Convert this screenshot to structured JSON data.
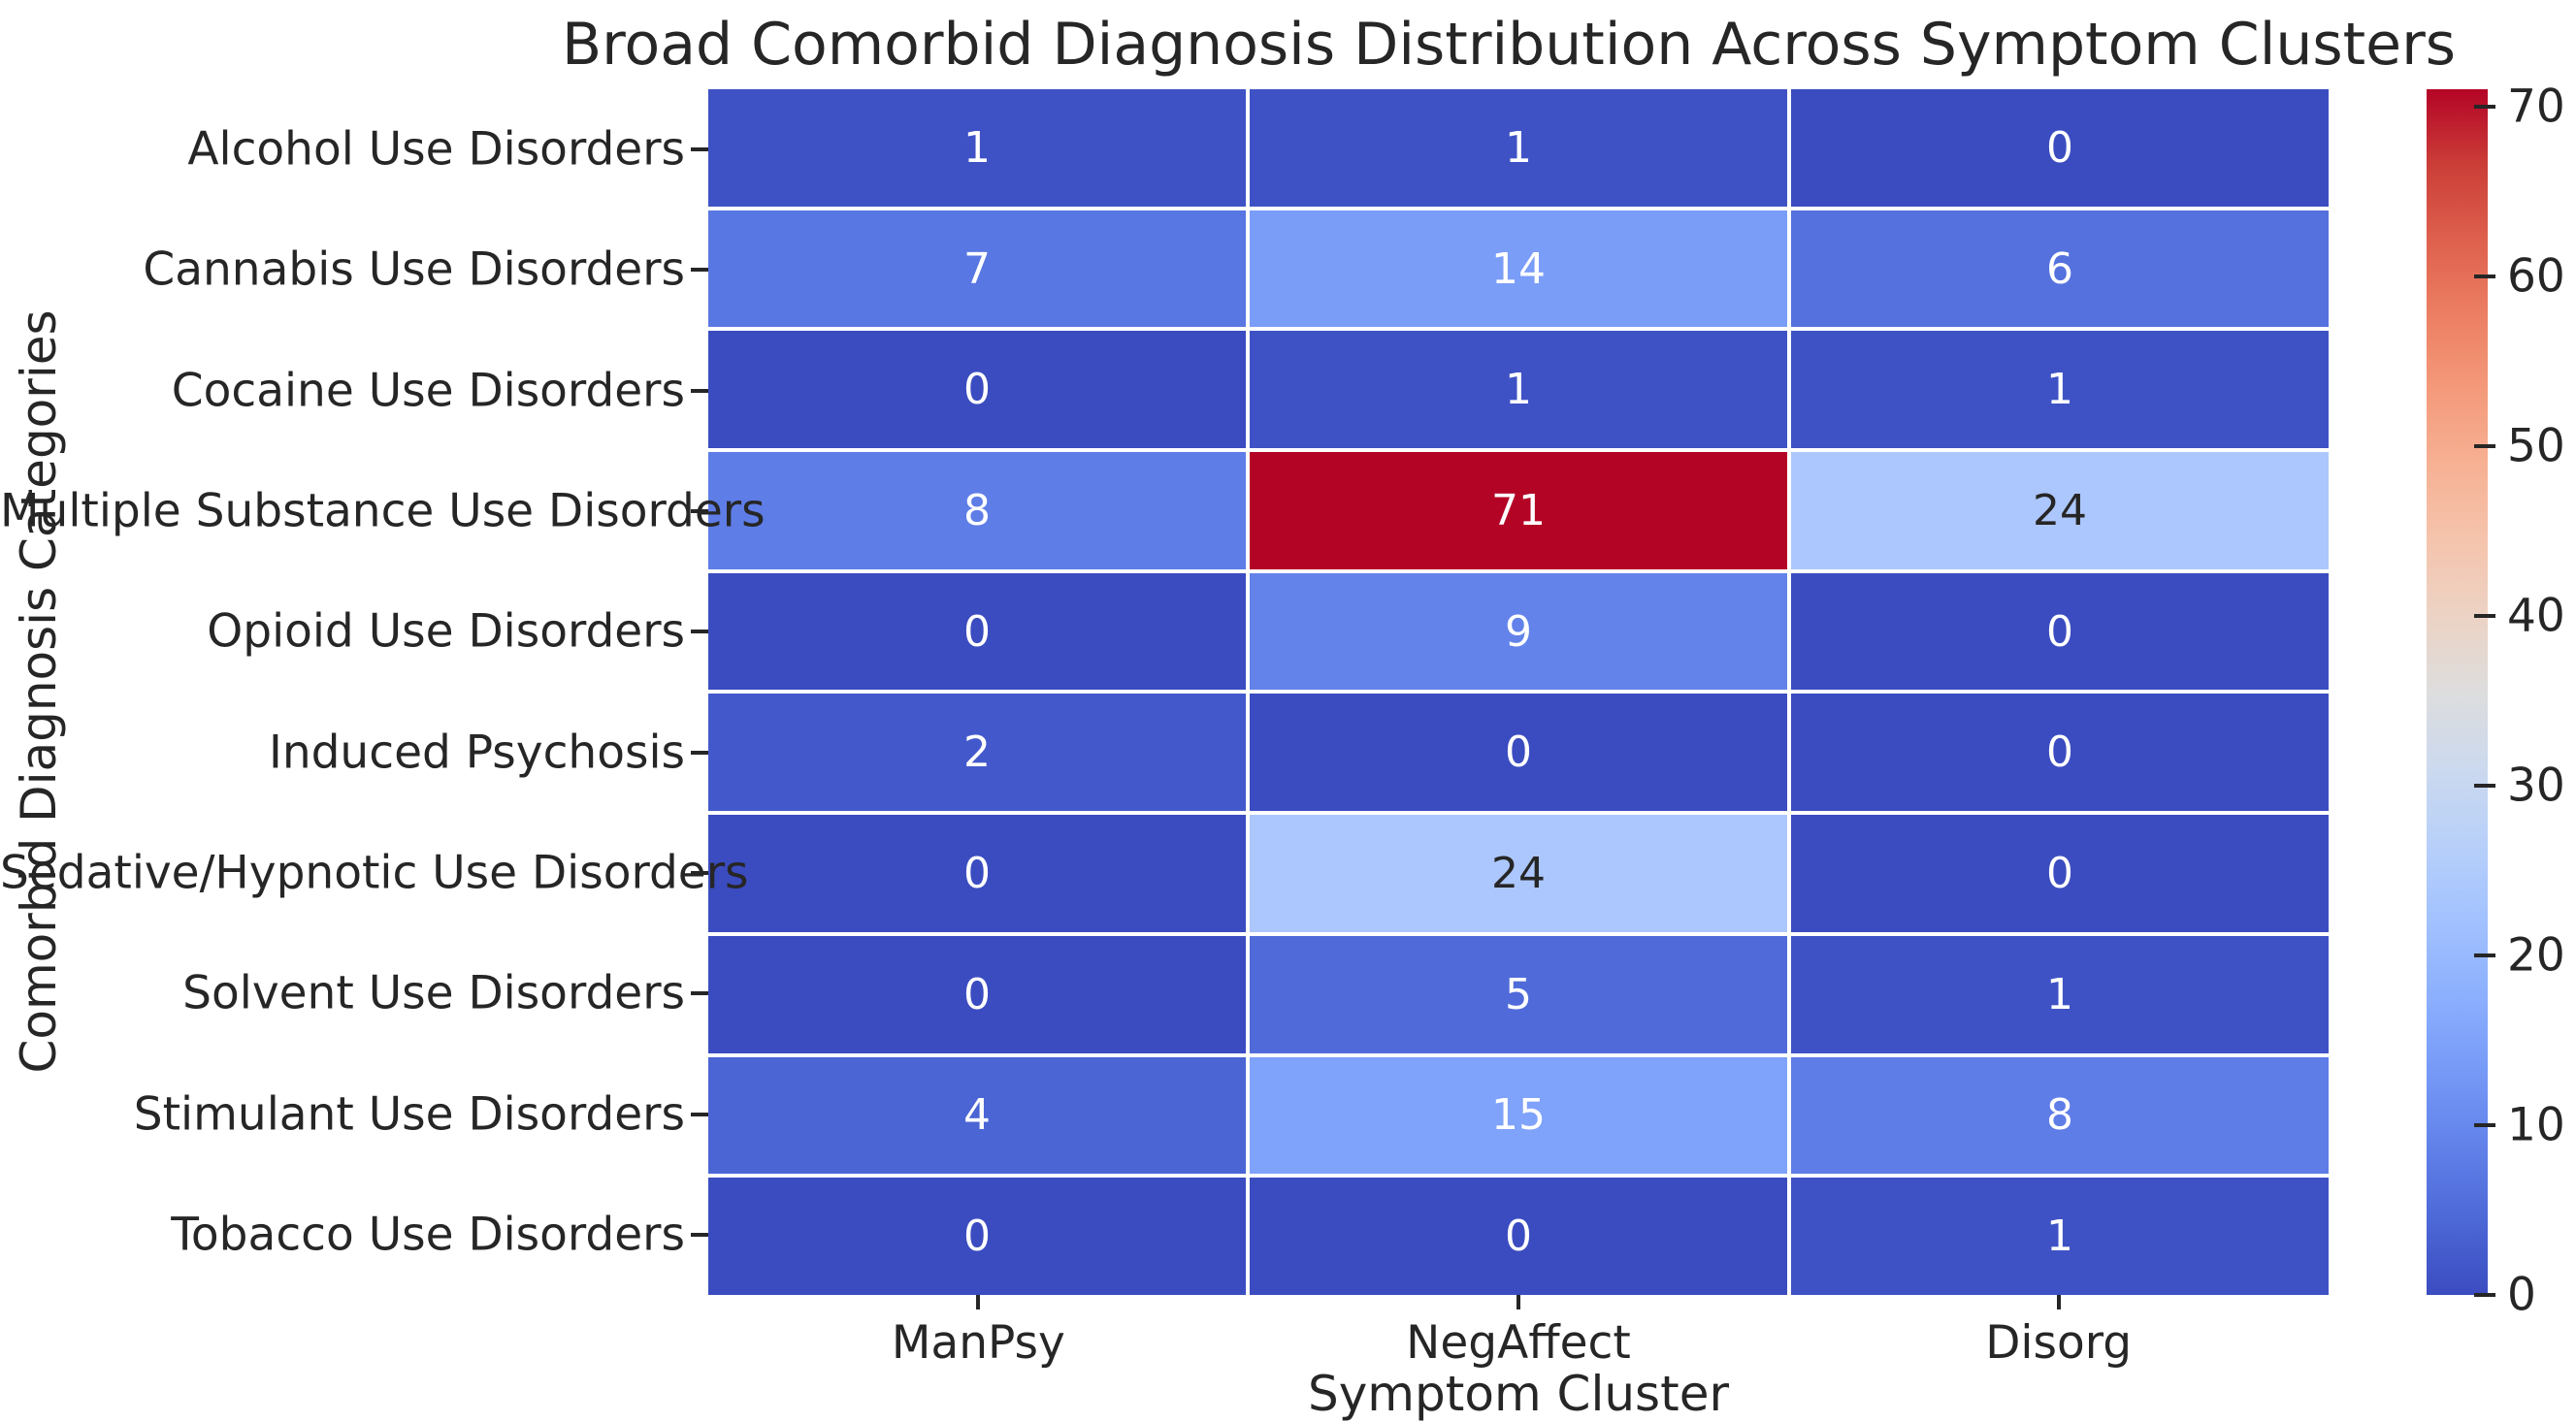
{
  "chart_data": {
    "type": "heatmap",
    "title": "Broad Comorbid Diagnosis Distribution Across Symptom Clusters",
    "xlabel": "Symptom Cluster",
    "ylabel": "Comorbid Diagnosis Categories",
    "columns": [
      "ManPsy",
      "NegAffect",
      "Disorg"
    ],
    "rows": [
      "Alcohol Use Disorders",
      "Cannabis Use Disorders",
      "Cocaine Use Disorders",
      "Multiple Substance Use Disorders",
      "Opioid Use Disorders",
      "Induced Psychosis",
      "Sedative/Hypnotic Use Disorders",
      "Solvent Use Disorders",
      "Stimulant Use Disorders",
      "Tobacco Use Disorders"
    ],
    "values": [
      [
        1,
        1,
        0
      ],
      [
        7,
        14,
        6
      ],
      [
        0,
        1,
        1
      ],
      [
        8,
        71,
        24
      ],
      [
        0,
        9,
        0
      ],
      [
        2,
        0,
        0
      ],
      [
        0,
        24,
        0
      ],
      [
        0,
        5,
        1
      ],
      [
        4,
        15,
        8
      ],
      [
        0,
        0,
        1
      ]
    ],
    "vmin": 0,
    "vmax": 71,
    "colormap": "coolwarm",
    "grid_on": false,
    "cell_colors": [
      [
        "#3f52c5",
        "#3f52c5",
        "#3b4cc0"
      ],
      [
        "#5977e2",
        "#7a9df8",
        "#5471de"
      ],
      [
        "#3b4cc0",
        "#3f52c5",
        "#3f52c5"
      ],
      [
        "#5e7de7",
        "#b40426",
        "#acc7fd"
      ],
      [
        "#3b4cc0",
        "#6383ea",
        "#3b4cc0"
      ],
      [
        "#4359cb",
        "#3b4cc0",
        "#3b4cc0"
      ],
      [
        "#3b4cc0",
        "#acc7fd",
        "#3b4cc0"
      ],
      [
        "#3b4cc0",
        "#506bd9",
        "#3f52c5"
      ],
      [
        "#4b65d5",
        "#7fa2fa",
        "#5e7de7"
      ],
      [
        "#3b4cc0",
        "#3b4cc0",
        "#3f52c5"
      ]
    ],
    "annot_colors": [
      [
        "#ffffff",
        "#ffffff",
        "#ffffff"
      ],
      [
        "#ffffff",
        "#ffffff",
        "#ffffff"
      ],
      [
        "#ffffff",
        "#ffffff",
        "#ffffff"
      ],
      [
        "#ffffff",
        "#ffffff",
        "#262626"
      ],
      [
        "#ffffff",
        "#ffffff",
        "#ffffff"
      ],
      [
        "#ffffff",
        "#ffffff",
        "#ffffff"
      ],
      [
        "#ffffff",
        "#262626",
        "#ffffff"
      ],
      [
        "#ffffff",
        "#ffffff",
        "#ffffff"
      ],
      [
        "#ffffff",
        "#ffffff",
        "#ffffff"
      ],
      [
        "#ffffff",
        "#ffffff",
        "#ffffff"
      ]
    ],
    "colorbar": {
      "position": "right",
      "ticks": [
        0,
        10,
        20,
        30,
        40,
        50,
        60,
        70
      ],
      "gradient_top_to_bottom": [
        "#b40426",
        "#cb3e38",
        "#de604d",
        "#ec7f63",
        "#f49a7b",
        "#f7b194",
        "#f5c4ad",
        "#ecd3c5",
        "#dddddd",
        "#ccd9ee",
        "#b8d0f9",
        "#a3c2ff",
        "#8db0fe",
        "#779af7",
        "#6282ea",
        "#4d68d7",
        "#3b4cc0"
      ]
    }
  },
  "colors": {
    "background": "#ffffff",
    "grid_line": "#ffffff",
    "text": "#262626",
    "min_cell": "#3b4cc0",
    "max_cell": "#b40426"
  }
}
